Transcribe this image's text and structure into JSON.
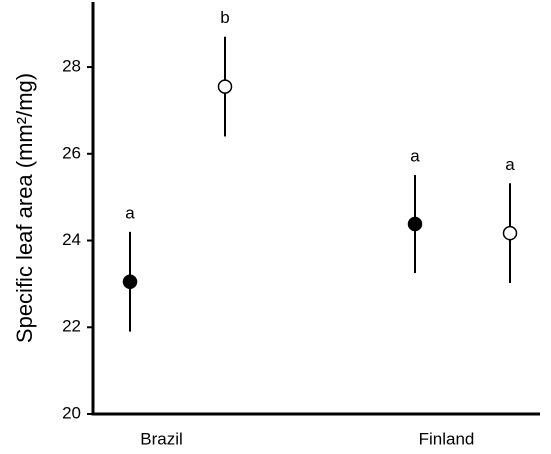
{
  "chart_data": {
    "type": "errorbar",
    "y_label": "Specific leaf area (mm²/mg)",
    "categories": [
      "Brazil",
      "Finland"
    ],
    "series": [
      {
        "color": "#000000",
        "fill": "#000000",
        "values": [
          23.05,
          24.38
        ],
        "errors": [
          1.15,
          1.13
        ],
        "letters": [
          "a",
          "a"
        ]
      },
      {
        "color": "#000000",
        "fill": "#ffffff",
        "values": [
          27.55,
          24.17
        ],
        "errors": [
          1.15,
          1.15
        ],
        "letters": [
          "b",
          "a"
        ]
      }
    ],
    "ylim": [
      20,
      29.5
    ],
    "yticks": [
      20,
      22,
      24,
      26,
      28
    ],
    "grid": false
  }
}
